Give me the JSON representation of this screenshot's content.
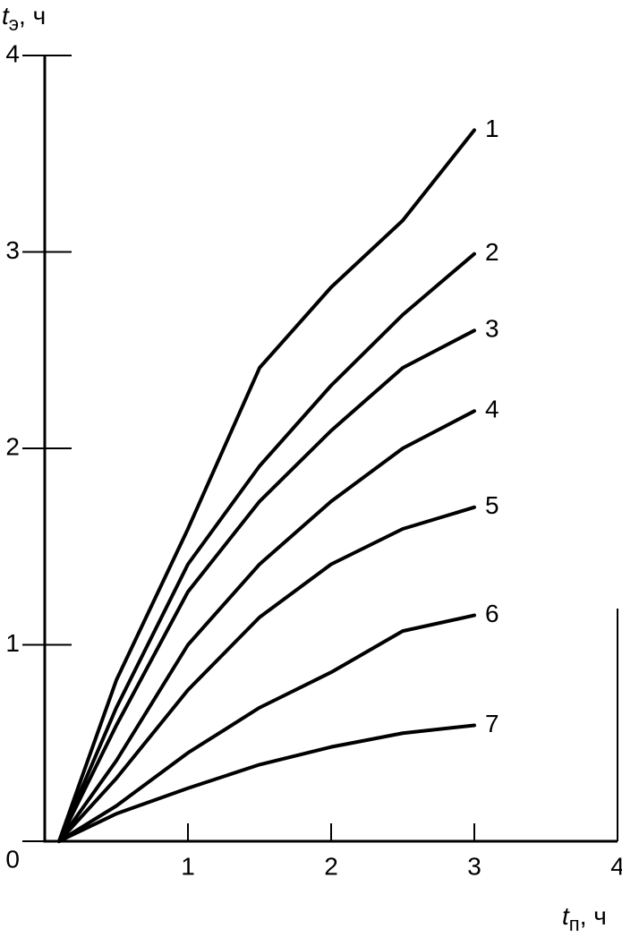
{
  "chart_data": {
    "type": "line",
    "y_label": [
      "t",
      "э",
      ", ч"
    ],
    "x_label": [
      "t",
      "п",
      ", ч"
    ],
    "x": [
      0.1,
      0.5,
      1,
      1.5,
      2,
      2.5,
      3
    ],
    "series": [
      {
        "name": "1",
        "color": "#000000",
        "values": [
          0,
          0.82,
          1.59,
          2.41,
          2.82,
          3.16,
          3.62
        ]
      },
      {
        "name": "2",
        "color": "#000000",
        "values": [
          0,
          0.68,
          1.41,
          1.91,
          2.32,
          2.68,
          2.99
        ]
      },
      {
        "name": "3",
        "color": "#000000",
        "values": [
          0,
          0.59,
          1.27,
          1.73,
          2.09,
          2.41,
          2.6
        ]
      },
      {
        "name": "4",
        "color": "#000000",
        "values": [
          0,
          0.41,
          1.0,
          1.41,
          1.73,
          2.0,
          2.19
        ]
      },
      {
        "name": "5",
        "color": "#000000",
        "values": [
          0,
          0.32,
          0.77,
          1.14,
          1.41,
          1.59,
          1.7
        ]
      },
      {
        "name": "6",
        "color": "#000000",
        "values": [
          0,
          0.18,
          0.45,
          0.68,
          0.86,
          1.07,
          1.15
        ]
      },
      {
        "name": "7",
        "color": "#000000",
        "values": [
          0,
          0.14,
          0.27,
          0.39,
          0.48,
          0.55,
          0.59
        ]
      }
    ],
    "xlim": [
      0,
      4
    ],
    "ylim": [
      0,
      4
    ],
    "xticks": [
      1,
      2,
      3,
      4
    ],
    "yticks": [
      0,
      1,
      2,
      3,
      4
    ]
  }
}
